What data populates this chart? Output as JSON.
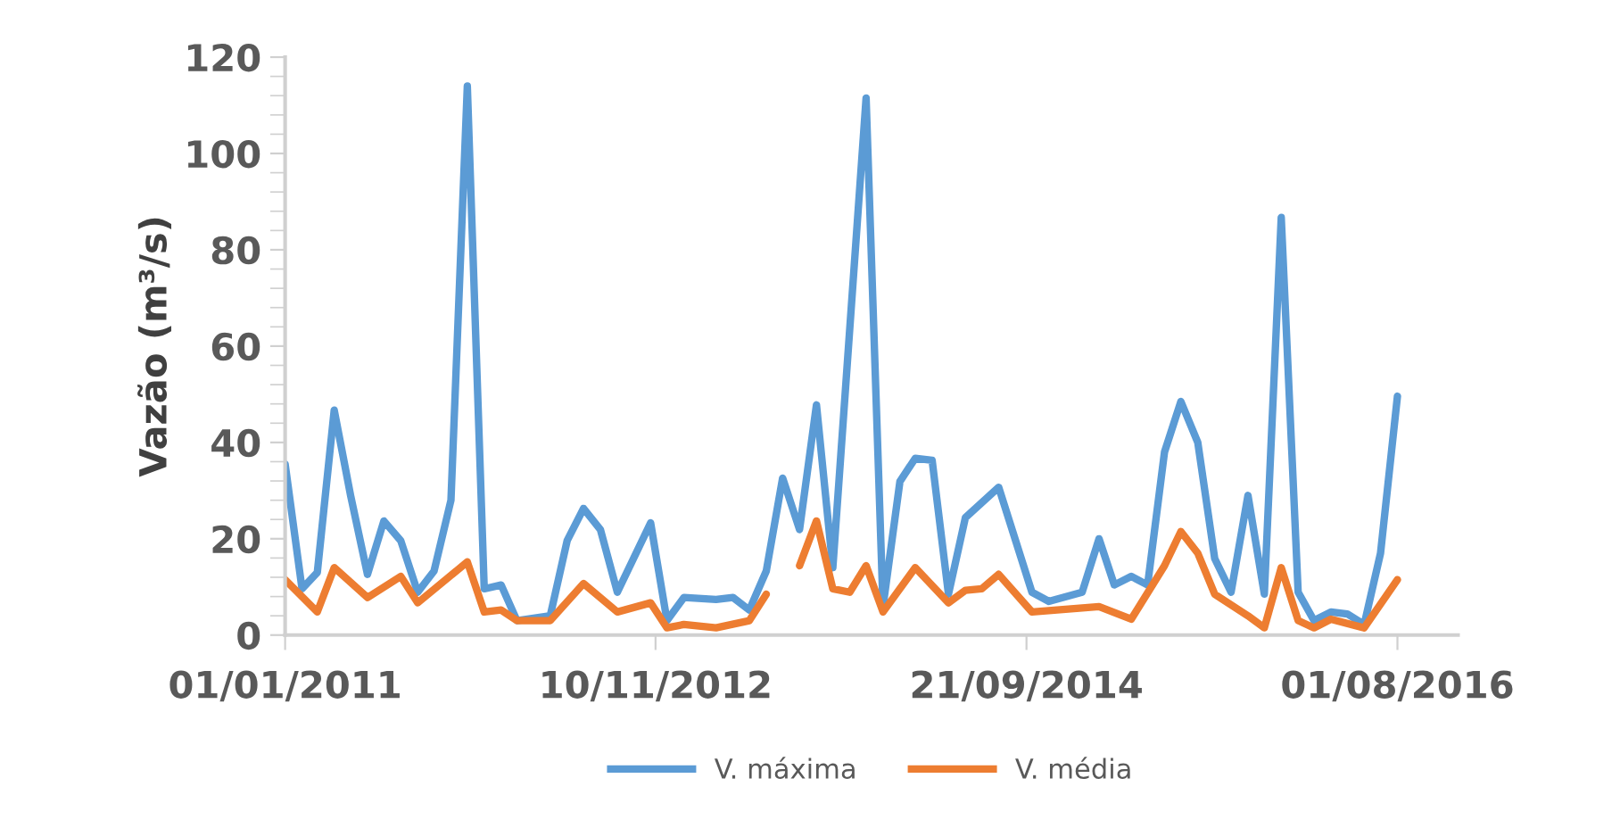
{
  "chart_data": {
    "type": "line",
    "ylabel": "Vazão (m³/s)",
    "xlim": [
      "2011-01-01",
      "2016-11-20"
    ],
    "xticks": [
      {
        "value": "2011-01-01",
        "label": "01/01/2011"
      },
      {
        "value": "2012-11-10",
        "label": "10/11/2012"
      },
      {
        "value": "2014-09-21",
        "label": "21/09/2014"
      },
      {
        "value": "2016-08-01",
        "label": "01/08/2016"
      }
    ],
    "ylim": [
      0,
      120
    ],
    "yticks": [
      0,
      20,
      40,
      60,
      80,
      100,
      120
    ],
    "grid": false,
    "legend": "bottom",
    "marker": "none",
    "line_style": "solid",
    "series": [
      {
        "name": "V. máxima",
        "color": "#5b9bd5",
        "x": [
          "2011-01",
          "2011-02",
          "2011-03",
          "2011-04",
          "2011-05",
          "2011-06",
          "2011-07",
          "2011-08",
          "2011-09",
          "2011-10",
          "2011-11",
          "2011-12",
          "2012-01",
          "2012-02",
          "2012-03",
          "2012-05",
          "2012-06",
          "2012-07",
          "2012-08",
          "2012-09",
          "2012-11",
          "2012-12",
          "2013-01",
          "2013-03",
          "2013-04",
          "2013-05",
          "2013-06",
          "2013-07",
          "2013-08",
          "2013-09",
          "2013-10",
          "2013-12",
          "2014-01",
          "2014-02",
          "2014-03",
          "2014-04",
          "2014-05",
          "2014-06",
          "2014-08",
          "2014-10",
          "2014-11",
          "2015-01",
          "2015-02",
          "2015-03",
          "2015-04",
          "2015-05",
          "2015-06",
          "2015-07",
          "2015-08",
          "2015-09",
          "2015-10",
          "2015-11",
          "2015-12",
          "2016-01",
          "2016-02",
          "2016-03",
          "2016-04",
          "2016-05",
          "2016-06",
          "2016-07",
          "2016-08"
        ],
        "values": [
          35.5,
          9.6,
          13,
          46.7,
          29,
          12.6,
          23.7,
          19.6,
          8.9,
          13.3,
          28,
          114,
          9.6,
          10.4,
          3,
          4,
          19.6,
          26.3,
          21.9,
          8.9,
          23.3,
          3,
          7.8,
          7.4,
          7.8,
          5.2,
          13.3,
          32.6,
          21.9,
          47.8,
          14,
          111.5,
          5.9,
          31.9,
          36.7,
          36.3,
          8.5,
          24.4,
          30.7,
          8.9,
          7,
          8.9,
          20,
          10.4,
          12.2,
          10.4,
          38,
          48.5,
          40,
          15.9,
          8.9,
          29,
          8.5,
          86.7,
          8.9,
          3,
          4.8,
          4.4,
          2.2,
          17,
          49.6
        ]
      },
      {
        "name": "V. média",
        "color": "#ed7d31",
        "x": [
          "2011-01",
          "2011-03",
          "2011-04",
          "2011-06",
          "2011-08",
          "2011-09",
          "2011-12",
          "2012-01",
          "2012-02",
          "2012-03",
          "2012-05",
          "2012-07",
          "2012-09",
          "2012-11",
          "2012-12",
          "2013-01",
          "2013-03",
          "2013-05",
          "2013-06",
          "2013-07",
          "2013-08",
          "2013-09",
          "2013-10",
          "2013-11",
          "2013-12",
          "2014-01",
          "2014-03",
          "2014-05",
          "2014-06",
          "2014-07",
          "2014-08",
          "2014-10",
          "2015-02",
          "2015-04",
          "2015-06",
          "2015-07",
          "2015-08",
          "2015-09",
          "2015-11",
          "2015-12",
          "2016-01",
          "2016-02",
          "2016-03",
          "2016-04",
          "2016-06",
          "2016-08"
        ],
        "values": [
          11.5,
          4.8,
          14,
          7.8,
          12.2,
          6.7,
          15.2,
          4.8,
          5.2,
          3,
          3,
          10.7,
          4.8,
          6.7,
          1.5,
          2.2,
          1.5,
          3,
          8.5,
          null,
          14.4,
          23.7,
          9.6,
          8.9,
          14.4,
          4.8,
          14,
          6.7,
          9.3,
          9.6,
          12.6,
          4.8,
          5.9,
          3.3,
          14.4,
          21.5,
          17,
          8.5,
          4,
          1.5,
          14,
          3,
          1.5,
          3.3,
          1.5,
          11.5
        ]
      }
    ]
  }
}
